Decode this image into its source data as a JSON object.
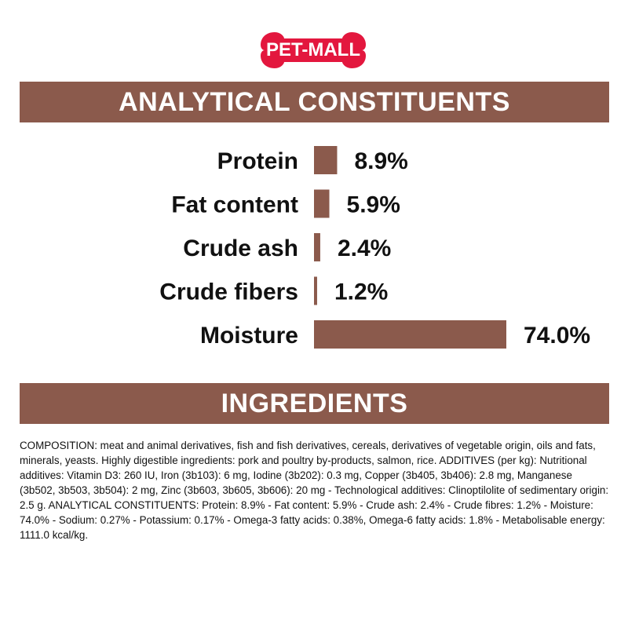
{
  "brand": {
    "logo_text": "PET-MALL",
    "logo_color": "#e3173e"
  },
  "colors": {
    "band": "#8b5a4c",
    "bar": "#8b5a4c",
    "text": "#111111"
  },
  "sections": {
    "analytical_title": "ANALYTICAL CONSTITUENTS",
    "ingredients_title": "INGREDIENTS"
  },
  "chart_data": {
    "type": "bar",
    "orientation": "horizontal",
    "categories": [
      "Protein",
      "Fat content",
      "Crude ash",
      "Crude fibers",
      "Moisture"
    ],
    "values": [
      8.9,
      5.9,
      2.4,
      1.2,
      74.0
    ],
    "value_labels": [
      "8.9%",
      "5.9%",
      "2.4%",
      "1.2%",
      "74.0%"
    ],
    "xlim": [
      0,
      74.0
    ],
    "grid": false,
    "legend": "none"
  },
  "composition_text": "COMPOSITION: meat and animal derivatives, fish and fish derivatives, cereals, derivatives of vegetable origin, oils and fats, minerals, yeasts. Highly digestible ingredients: pork and poultry by-products, salmon, rice. ADDITIVES (per kg): Nutritional additives: Vitamin D3: 260 IU, Iron (3b103): 6 mg, Iodine (3b202): 0.3 mg, Copper (3b405, 3b406): 2.8 mg, Manganese (3b502, 3b503, 3b504): 2 mg, Zinc (3b603, 3b605, 3b606): 20 mg - Technological additives: Clinoptilolite of sedimentary origin: 2.5 g. ANALYTICAL CONSTITUENTS: Protein: 8.9% - Fat content: 5.9% - Crude ash: 2.4% - Crude fibres: 1.2% - Moisture: 74.0% - Sodium: 0.27% - Potassium: 0.17% - Omega-3 fatty acids: 0.38%, Omega-6 fatty acids: 1.8% - Metabolisable energy: 1111.0 kcal/kg."
}
